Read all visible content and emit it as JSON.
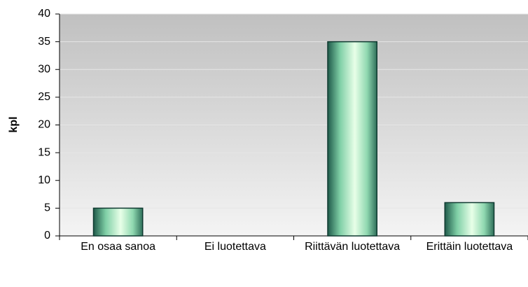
{
  "chart_data": {
    "type": "bar",
    "y_label": "kpl",
    "categories": [
      "En osaa sanoa",
      "Ei luotettava",
      "Riittävän luotettava",
      "Erittäin luotettava"
    ],
    "values": [
      5,
      0,
      35,
      6
    ],
    "ylim": [
      0,
      40
    ],
    "yticks": [
      0,
      5,
      10,
      15,
      20,
      25,
      30,
      35,
      40
    ],
    "grid": true
  }
}
